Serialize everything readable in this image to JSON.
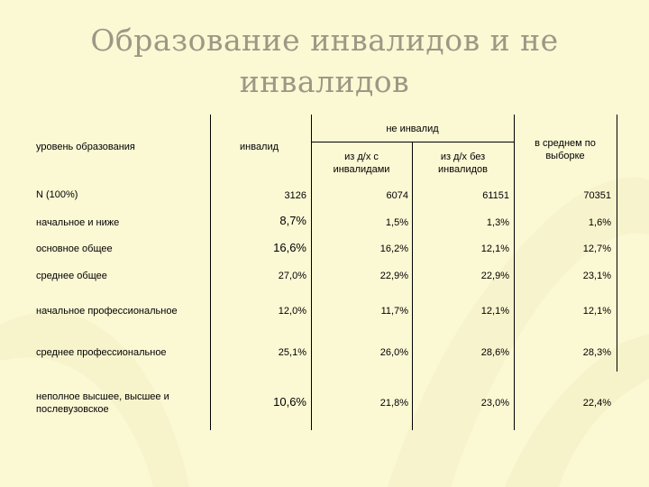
{
  "title_line1": "Образование инвалидов и не",
  "title_line2": "инвалидов",
  "table": {
    "header": {
      "education_level": "уровень образования",
      "disabled": "инвалид",
      "not_disabled": "не инвалид",
      "from_hh_with": [
        "из д/х с",
        "инвалидами"
      ],
      "from_hh_without": [
        "из д/х без",
        "инвалидов"
      ],
      "sample_average": [
        "в среднем по",
        "выборке"
      ]
    },
    "rows": [
      {
        "label": [
          "N   (100%)"
        ],
        "values": [
          "3126",
          "6074",
          "61151",
          "70351"
        ]
      },
      {
        "label": [
          "начальное и ниже"
        ],
        "values": [
          "8,7%",
          "1,5%",
          "1,3%",
          "1,6%"
        ]
      },
      {
        "label": [
          "основное общее"
        ],
        "values": [
          "16,6%",
          "16,2%",
          "12,1%",
          "12,7%"
        ]
      },
      {
        "label": [
          "среднее общее"
        ],
        "values": [
          "27,0%",
          "22,9%",
          "22,9%",
          "23,1%"
        ]
      },
      {
        "label": [
          "начальное профессиональное"
        ],
        "values": [
          "12,0%",
          "11,7%",
          "12,1%",
          "12,1%"
        ]
      },
      {
        "label": [
          "среднее профессиональное"
        ],
        "values": [
          "25,1%",
          "26,0%",
          "28,6%",
          "28,3%"
        ]
      },
      {
        "label": [
          "неполное высшее, высшее и",
          "послевузовское"
        ],
        "values": [
          "10,6%",
          "21,8%",
          "23,0%",
          "22,4%"
        ]
      }
    ]
  }
}
